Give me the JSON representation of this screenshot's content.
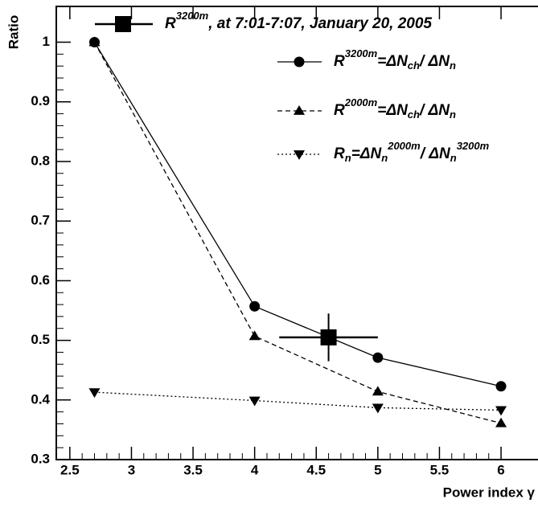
{
  "chart_data": {
    "type": "line",
    "x_label": "Power index γ",
    "y_label": "Ratio",
    "xlim": [
      2.39,
      6.3
    ],
    "ylim": [
      0.3,
      1.06
    ],
    "xticks": [
      2.5,
      3,
      3.5,
      4,
      4.5,
      5,
      5.5,
      6
    ],
    "yticks": [
      0.3,
      0.4,
      0.5,
      0.6,
      0.7,
      0.8,
      0.9,
      1
    ],
    "series": [
      {
        "name": [
          {
            "text": "R"
          },
          {
            "text": "3200m",
            "pos": "sup"
          },
          {
            "text": "=ΔN"
          },
          {
            "text": "ch",
            "pos": "sub"
          },
          {
            "text": "/ ΔN"
          },
          {
            "text": "n",
            "pos": "sub"
          }
        ],
        "style": "solid",
        "marker": "circle",
        "color": "#000000",
        "x": [
          2.7,
          4,
          5,
          6
        ],
        "values": [
          1.0,
          0.557,
          0.471,
          0.423
        ]
      },
      {
        "name": [
          {
            "text": "R"
          },
          {
            "text": "2000m",
            "pos": "sup"
          },
          {
            "text": "=ΔN"
          },
          {
            "text": "ch",
            "pos": "sub"
          },
          {
            "text": "/ ΔN"
          },
          {
            "text": "n",
            "pos": "sub"
          }
        ],
        "style": "dashed",
        "marker": "triangle-up",
        "color": "#000000",
        "x": [
          2.7,
          4,
          5,
          6
        ],
        "values": [
          1.0,
          0.507,
          0.414,
          0.361
        ]
      },
      {
        "name": [
          {
            "text": "R"
          },
          {
            "text": "n",
            "pos": "sub"
          },
          {
            "text": "=ΔN"
          },
          {
            "text": "n",
            "pos": "sub"
          },
          {
            "text": "2000m",
            "pos": "sup"
          },
          {
            "text": "/ ΔN"
          },
          {
            "text": "n",
            "pos": "sub"
          },
          {
            "text": "3200m",
            "pos": "sup"
          }
        ],
        "style": "dotted",
        "marker": "triangle-down",
        "color": "#000000",
        "x": [
          2.7,
          4,
          5,
          6
        ],
        "values": [
          0.413,
          0.399,
          0.387,
          0.383
        ]
      }
    ],
    "measurement": {
      "name": [
        {
          "text": "R"
        },
        {
          "text": "3200m",
          "pos": "sup"
        },
        {
          "text": ", at 7:01-7:07, January 20, 2005"
        }
      ],
      "marker": "square",
      "color": "#000000",
      "x": 4.6,
      "x_error": 0.4,
      "value": 0.505,
      "error": 0.04
    }
  }
}
